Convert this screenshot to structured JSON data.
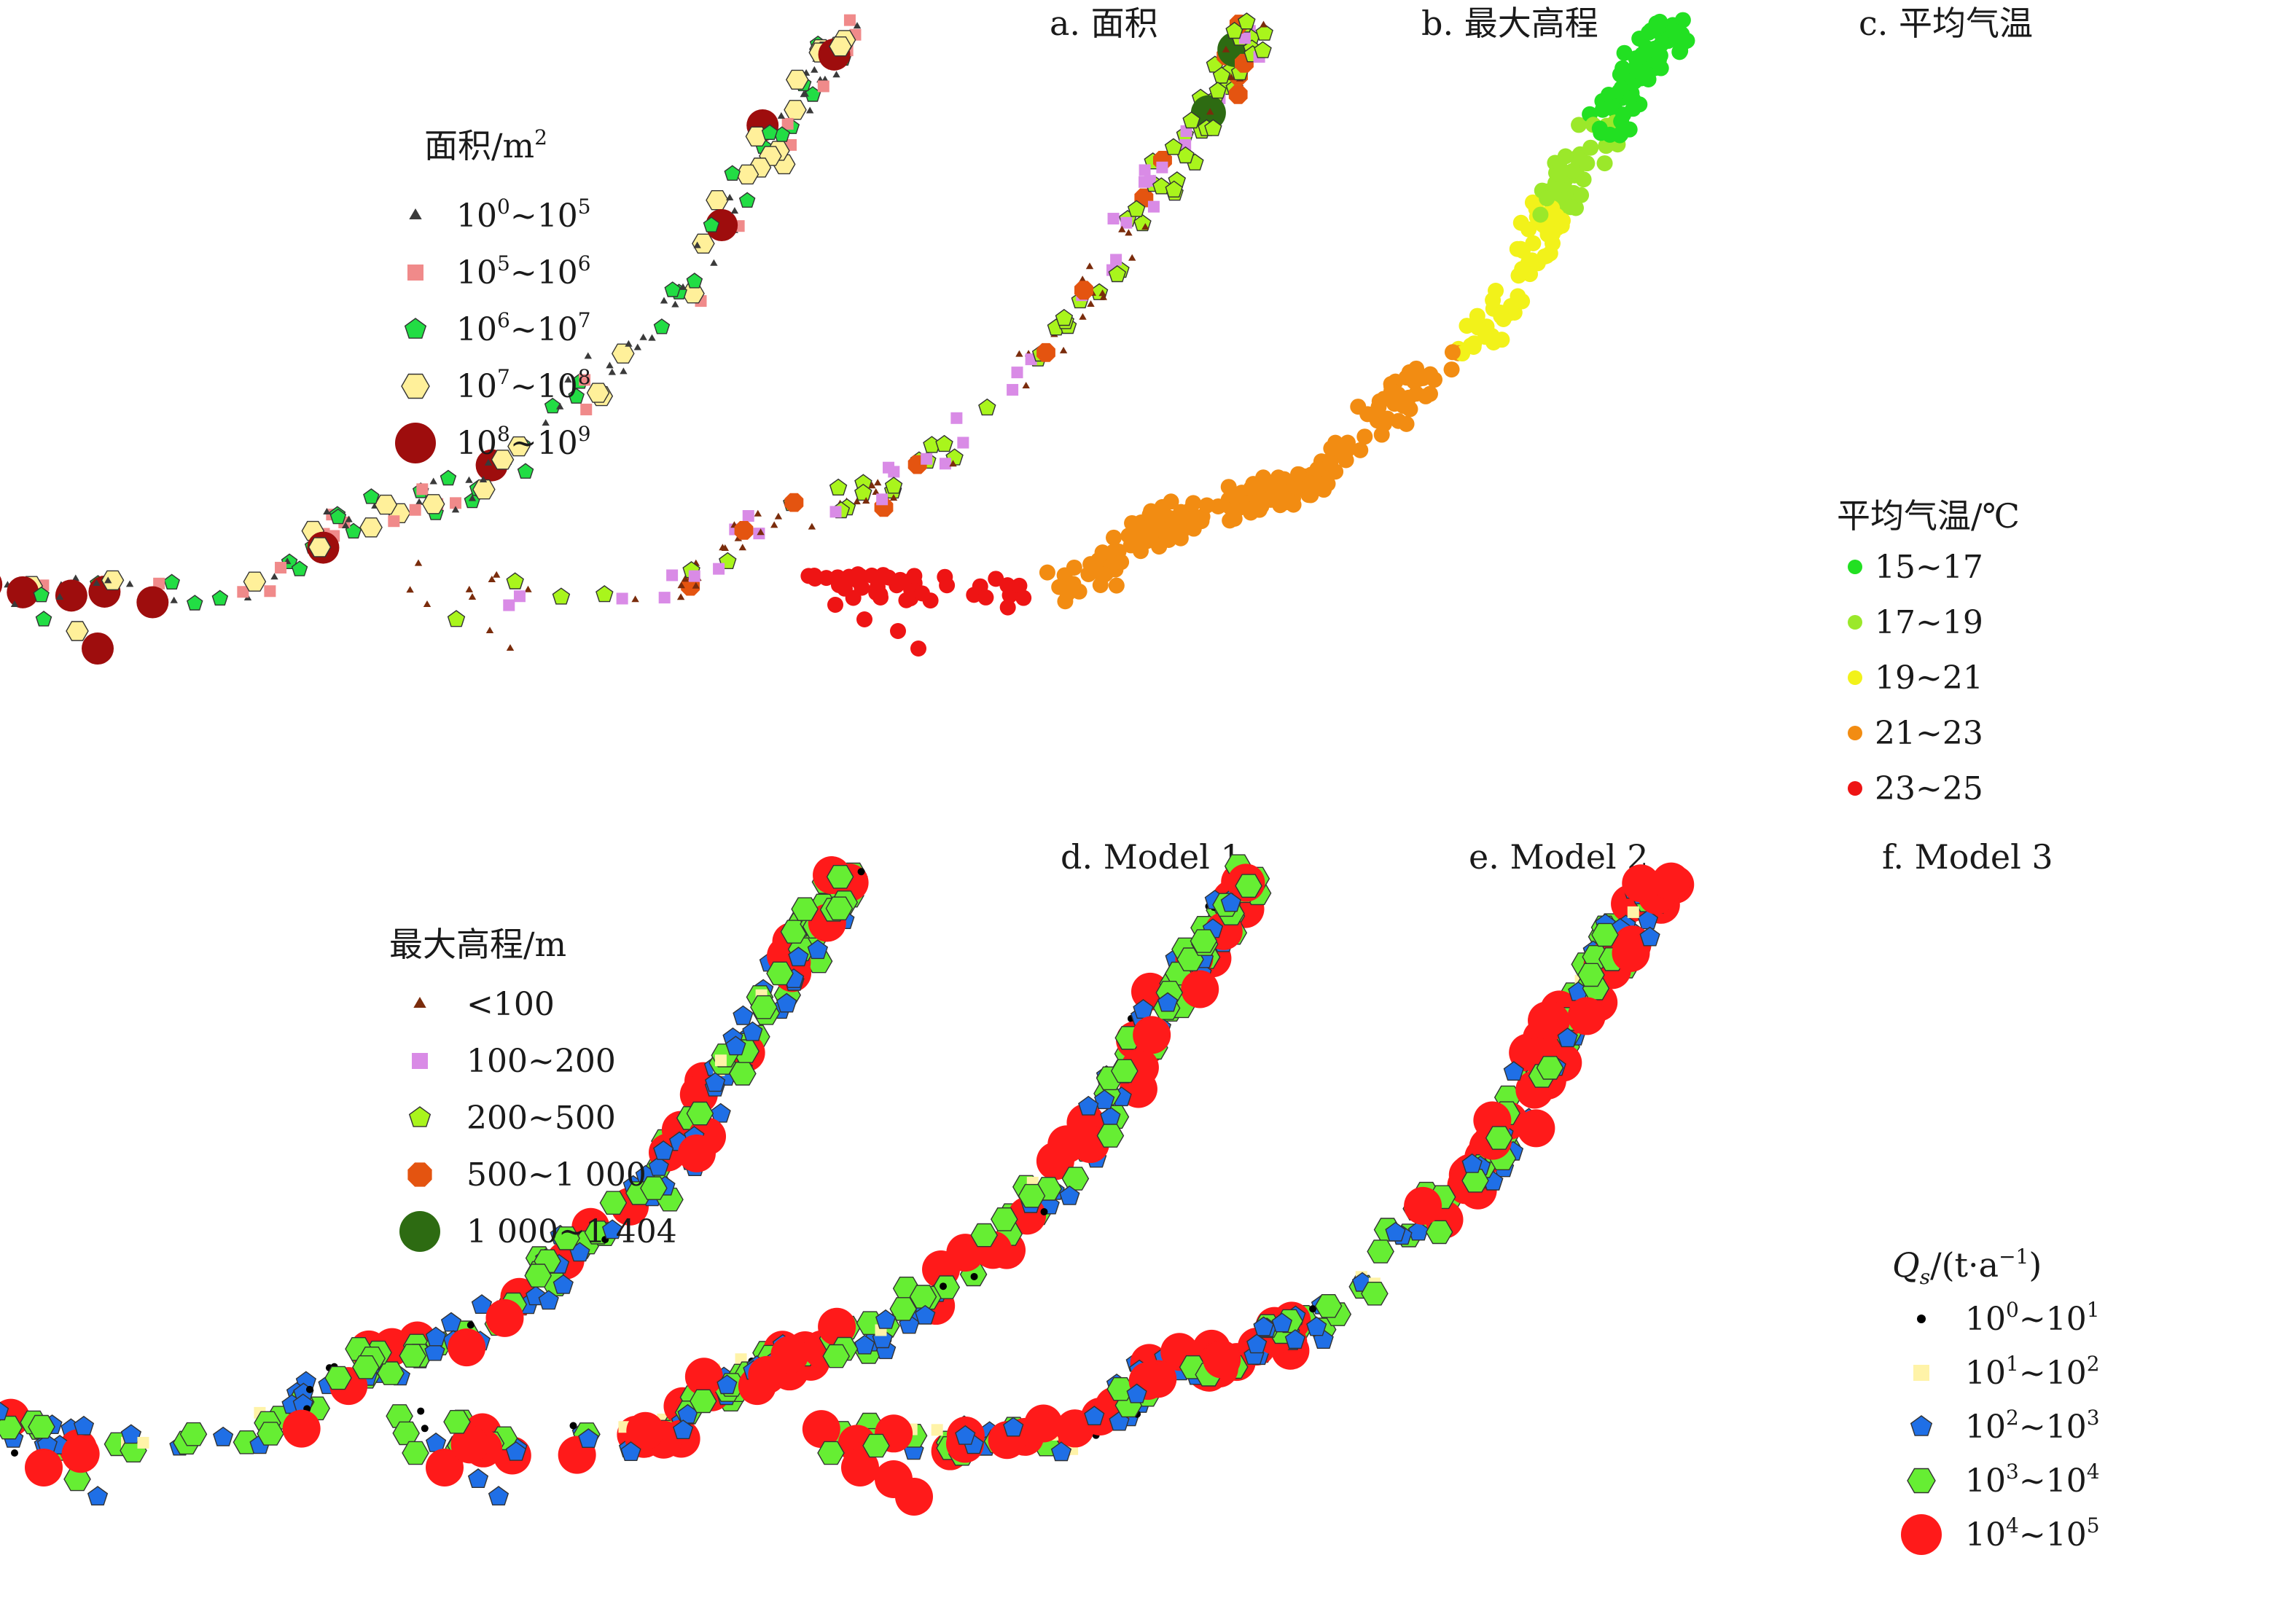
{
  "panels": [
    {
      "id": "a",
      "title": "a. 面积",
      "theme": "area"
    },
    {
      "id": "b",
      "title": "b. 最大高程",
      "theme": "elev"
    },
    {
      "id": "c",
      "title": "c. 平均气温",
      "theme": "temp"
    },
    {
      "id": "d",
      "title": "d. Model 1",
      "theme": "qs1"
    },
    {
      "id": "e",
      "title": "e. Model 2",
      "theme": "qs2"
    },
    {
      "id": "f",
      "title": "f. Model 3",
      "theme": "qs3"
    }
  ],
  "legends": {
    "area": {
      "title": "面积/m",
      "title_sup": "2",
      "items": [
        {
          "base1": "10",
          "exp1": "0",
          "base2": "~10",
          "exp2": "5",
          "symbol": "triangle",
          "color": "#3a3a3a"
        },
        {
          "base1": "10",
          "exp1": "5",
          "base2": "~10",
          "exp2": "6",
          "symbol": "square",
          "color": "#f08a8a"
        },
        {
          "base1": "10",
          "exp1": "6",
          "base2": "~10",
          "exp2": "7",
          "symbol": "pentagon",
          "color": "#22dd44"
        },
        {
          "base1": "10",
          "exp1": "7",
          "base2": "~10",
          "exp2": "8",
          "symbol": "hexagon",
          "color": "#fff09a"
        },
        {
          "base1": "10",
          "exp1": "8",
          "base2": "~10",
          "exp2": "9",
          "symbol": "circle",
          "color": "#9e0d0d"
        }
      ]
    },
    "elev": {
      "title": "最大高程/m",
      "items": [
        {
          "label": "<100",
          "symbol": "triangle",
          "color": "#7a2c0c"
        },
        {
          "label": "100~200",
          "symbol": "square",
          "color": "#d98be6"
        },
        {
          "label": "200~500",
          "symbol": "pentagon",
          "color": "#a9f51c"
        },
        {
          "label": "500~1 000",
          "symbol": "octagon",
          "color": "#e45410"
        },
        {
          "label": "1 000~1 404",
          "symbol": "circle",
          "color": "#2d6b12"
        }
      ]
    },
    "temp": {
      "title": "平均气温/℃",
      "items": [
        {
          "label": "15~17",
          "symbol": "circle",
          "color": "#22e022"
        },
        {
          "label": "17~19",
          "symbol": "circle",
          "color": "#9be82a"
        },
        {
          "label": "19~21",
          "symbol": "circle",
          "color": "#f2f21a"
        },
        {
          "label": "21~23",
          "symbol": "circle",
          "color": "#f28c12"
        },
        {
          "label": "23~25",
          "symbol": "circle",
          "color": "#ee1414"
        }
      ]
    },
    "qs": {
      "title_var": "Q",
      "title_sub": "s",
      "title_rest": "/(t·a",
      "title_sup": "−1",
      "title_close": ")",
      "items": [
        {
          "base1": "10",
          "exp1": "0",
          "base2": "~10",
          "exp2": "1",
          "symbol": "dot",
          "color": "#000000"
        },
        {
          "base1": "10",
          "exp1": "1",
          "base2": "~10",
          "exp2": "2",
          "symbol": "square",
          "color": "#fff3a8"
        },
        {
          "base1": "10",
          "exp1": "2",
          "base2": "~10",
          "exp2": "3",
          "symbol": "pentagon",
          "color": "#1f6fe6"
        },
        {
          "base1": "10",
          "exp1": "3",
          "base2": "~10",
          "exp2": "4",
          "symbol": "hexagon",
          "color": "#66ee33"
        },
        {
          "base1": "10",
          "exp1": "4",
          "base2": "~10",
          "exp2": "5",
          "symbol": "circle",
          "color": "#ff1a1a"
        }
      ]
    }
  }
}
